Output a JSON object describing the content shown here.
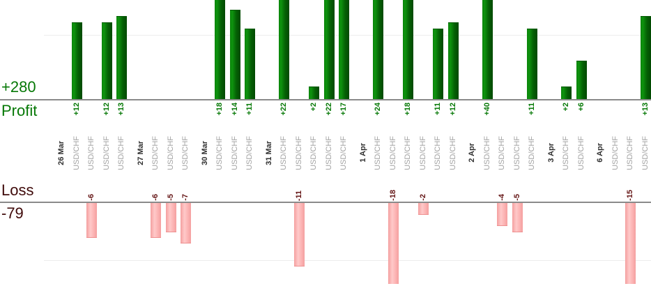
{
  "profit_summary": {
    "total": "+280",
    "label": "Profit"
  },
  "loss_summary": {
    "label": "Loss",
    "total": "-79"
  },
  "chart_data": {
    "type": "bar",
    "orientation": "vertical",
    "instrument": "USD/CHF",
    "top_section_label": "Profit",
    "bottom_section_label": "Loss",
    "totals": {
      "profit": 280,
      "loss": -79
    },
    "gridline_values": {
      "profit_section": 10,
      "loss_section": -10
    },
    "clipping": "top of tall profit bars and bottom of -15/-18 loss bars are cut off by image edges",
    "groups": [
      {
        "date": "26 Mar",
        "values": [
          12,
          -6,
          12,
          13
        ]
      },
      {
        "date": "27 Mar",
        "values": [
          -6,
          -5,
          -7
        ]
      },
      {
        "date": "30 Mar",
        "values": [
          18,
          14,
          11
        ]
      },
      {
        "date": "31 Mar",
        "values": [
          22,
          -11,
          2,
          22,
          17
        ]
      },
      {
        "date": "1 Apr",
        "values": [
          24,
          -18,
          18,
          -2,
          11,
          12
        ]
      },
      {
        "date": "2 Apr",
        "values": [
          40,
          -4,
          -5,
          11
        ]
      },
      {
        "date": "3 Apr",
        "values": [
          2,
          6
        ]
      },
      {
        "date": "6 Apr",
        "values": [
          null,
          -15,
          13
        ]
      }
    ],
    "colors": {
      "profit_bar_light": "#0e930e",
      "profit_bar_dark": "#024902",
      "loss_bar_light": "#ffc9c9",
      "loss_bar_edge": "#f49f9f",
      "profit_value_text": "#067806",
      "loss_value_text": "#641414",
      "date_text": "#2f2f2f",
      "instrument_text": "#a3a3a3",
      "summary_profit_text": "#067806",
      "summary_loss_text": "#3f0a0a",
      "baseline": "#8a8a8a",
      "gridline": "#ececec"
    }
  }
}
